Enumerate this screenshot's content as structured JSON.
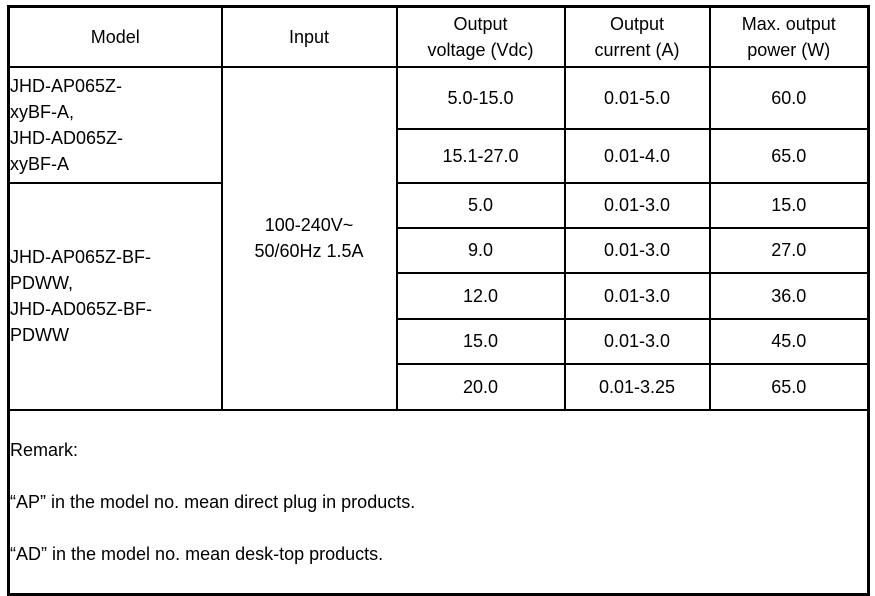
{
  "document": {
    "background_color": "#ffffff",
    "border_color": "#000000",
    "text_color": "#000000"
  },
  "table": {
    "headers": [
      "Model",
      "Input",
      "Output\nvoltage (Vdc)",
      "Output\ncurrent (A)",
      "Max. output\npower (W)"
    ],
    "model_groups": [
      {
        "label": "JHD-AP065Z-\nxyBF-A,\nJHD-AD065Z-\nxyBF-A",
        "row_span": 2
      },
      {
        "label": "JHD-AP065Z-BF-\nPDWW,\nJHD-AD065Z-BF-\nPDWW",
        "row_span": 5
      }
    ],
    "input_value": "100-240V~\n50/60Hz 1.5A",
    "rows": [
      {
        "voltage": "5.0-15.0",
        "current": "0.01-5.0",
        "power": "60.0"
      },
      {
        "voltage": "15.1-27.0",
        "current": "0.01-4.0",
        "power": "65.0"
      },
      {
        "voltage": "5.0",
        "current": "0.01-3.0",
        "power": "15.0"
      },
      {
        "voltage": "9.0",
        "current": "0.01-3.0",
        "power": "27.0"
      },
      {
        "voltage": "12.0",
        "current": "0.01-3.0",
        "power": "36.0"
      },
      {
        "voltage": "15.0",
        "current": "0.01-3.0",
        "power": "45.0"
      },
      {
        "voltage": "20.0",
        "current": "0.01-3.25",
        "power": "65.0"
      }
    ],
    "remark": {
      "title": "Remark:",
      "lines": [
        "“AP” in the model no. mean direct plug in products.",
        "“AD” in the model no. mean desk-top products."
      ]
    }
  }
}
